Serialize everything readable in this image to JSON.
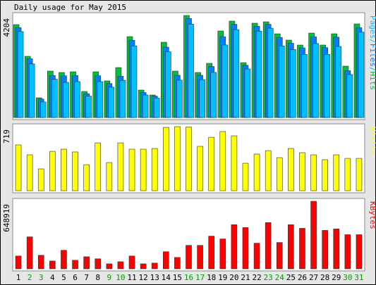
{
  "title": "Daily usage for May 2015",
  "legend_separator": "/",
  "chart_data": [
    {
      "type": "bar",
      "ylim": [
        0,
        4204
      ],
      "yticks": [
        4204
      ],
      "series": [
        {
          "name": "Pages",
          "color": "#00c0ff",
          "values": [
            3540,
            2210,
            640,
            1580,
            1450,
            1480,
            880,
            1480,
            1250,
            1530,
            2950,
            930,
            800,
            2710,
            1540,
            3850,
            1560,
            1860,
            2990,
            3620,
            2000,
            3560,
            3680,
            2950,
            2800,
            2600,
            3050,
            2600,
            2930,
            1770,
            3520
          ]
        },
        {
          "name": "Files",
          "color": "#0080ff",
          "values": [
            3700,
            2420,
            760,
            1730,
            1720,
            1730,
            980,
            1720,
            1400,
            1700,
            3180,
            1030,
            880,
            2900,
            1740,
            4080,
            1740,
            2100,
            3330,
            3840,
            2150,
            3760,
            3840,
            3300,
            3060,
            2870,
            3330,
            2880,
            3310,
            1930,
            3700
          ]
        },
        {
          "name": "Hits",
          "color": "#00c040",
          "values": [
            3827,
            2522,
            812,
            1913,
            1855,
            1884,
            1073,
            1884,
            1508,
            2058,
            3334,
            1131,
            928,
            3102,
            1913,
            4204,
            1855,
            2232,
            3566,
            3972,
            2261,
            3885,
            3943,
            3450,
            3189,
            2986,
            3479,
            2986,
            3450,
            2116,
            3856
          ]
        }
      ]
    },
    {
      "type": "bar",
      "ylim": [
        0,
        719
      ],
      "yticks": [
        719
      ],
      "series": [
        {
          "name": "Visits",
          "color": "#ffff00",
          "values": [
            514,
            403,
            245,
            442,
            466,
            435,
            292,
            537,
            316,
            537,
            466,
            466,
            474,
            711,
            719,
            715,
            498,
            600,
            664,
            616,
            308,
            411,
            450,
            371,
            474,
            427,
            403,
            348,
            403,
            363,
            363
          ]
        }
      ]
    },
    {
      "type": "bar",
      "ylim": [
        0,
        648919
      ],
      "yticks": [
        648919
      ],
      "categories": [
        "1",
        "2",
        "3",
        "4",
        "5",
        "6",
        "7",
        "8",
        "9",
        "10",
        "11",
        "12",
        "13",
        "14",
        "15",
        "16",
        "17",
        "18",
        "19",
        "20",
        "21",
        "22",
        "23",
        "24",
        "25",
        "26",
        "27",
        "28",
        "29",
        "30",
        "31"
      ],
      "category_colors": [
        "#000000",
        "#00a000",
        "#00a000",
        "#000000",
        "#000000",
        "#000000",
        "#000000",
        "#000000",
        "#00a000",
        "#00a000",
        "#000000",
        "#000000",
        "#000000",
        "#000000",
        "#000000",
        "#00a000",
        "#00a000",
        "#000000",
        "#000000",
        "#000000",
        "#000000",
        "#000000",
        "#00a000",
        "#00a000",
        "#000000",
        "#000000",
        "#000000",
        "#000000",
        "#000000",
        "#00a000",
        "#00a000"
      ],
      "series": [
        {
          "name": "KBytes",
          "color": "#ff0000",
          "values": [
            123000,
            307000,
            130000,
            75000,
            178000,
            82000,
            116000,
            96000,
            48000,
            68000,
            123000,
            48000,
            55000,
            164000,
            109000,
            225000,
            225000,
            314000,
            287000,
            424000,
            396000,
            246000,
            444000,
            253000,
            424000,
            389000,
            648919,
            369000,
            383000,
            328000,
            328000
          ]
        }
      ]
    }
  ]
}
